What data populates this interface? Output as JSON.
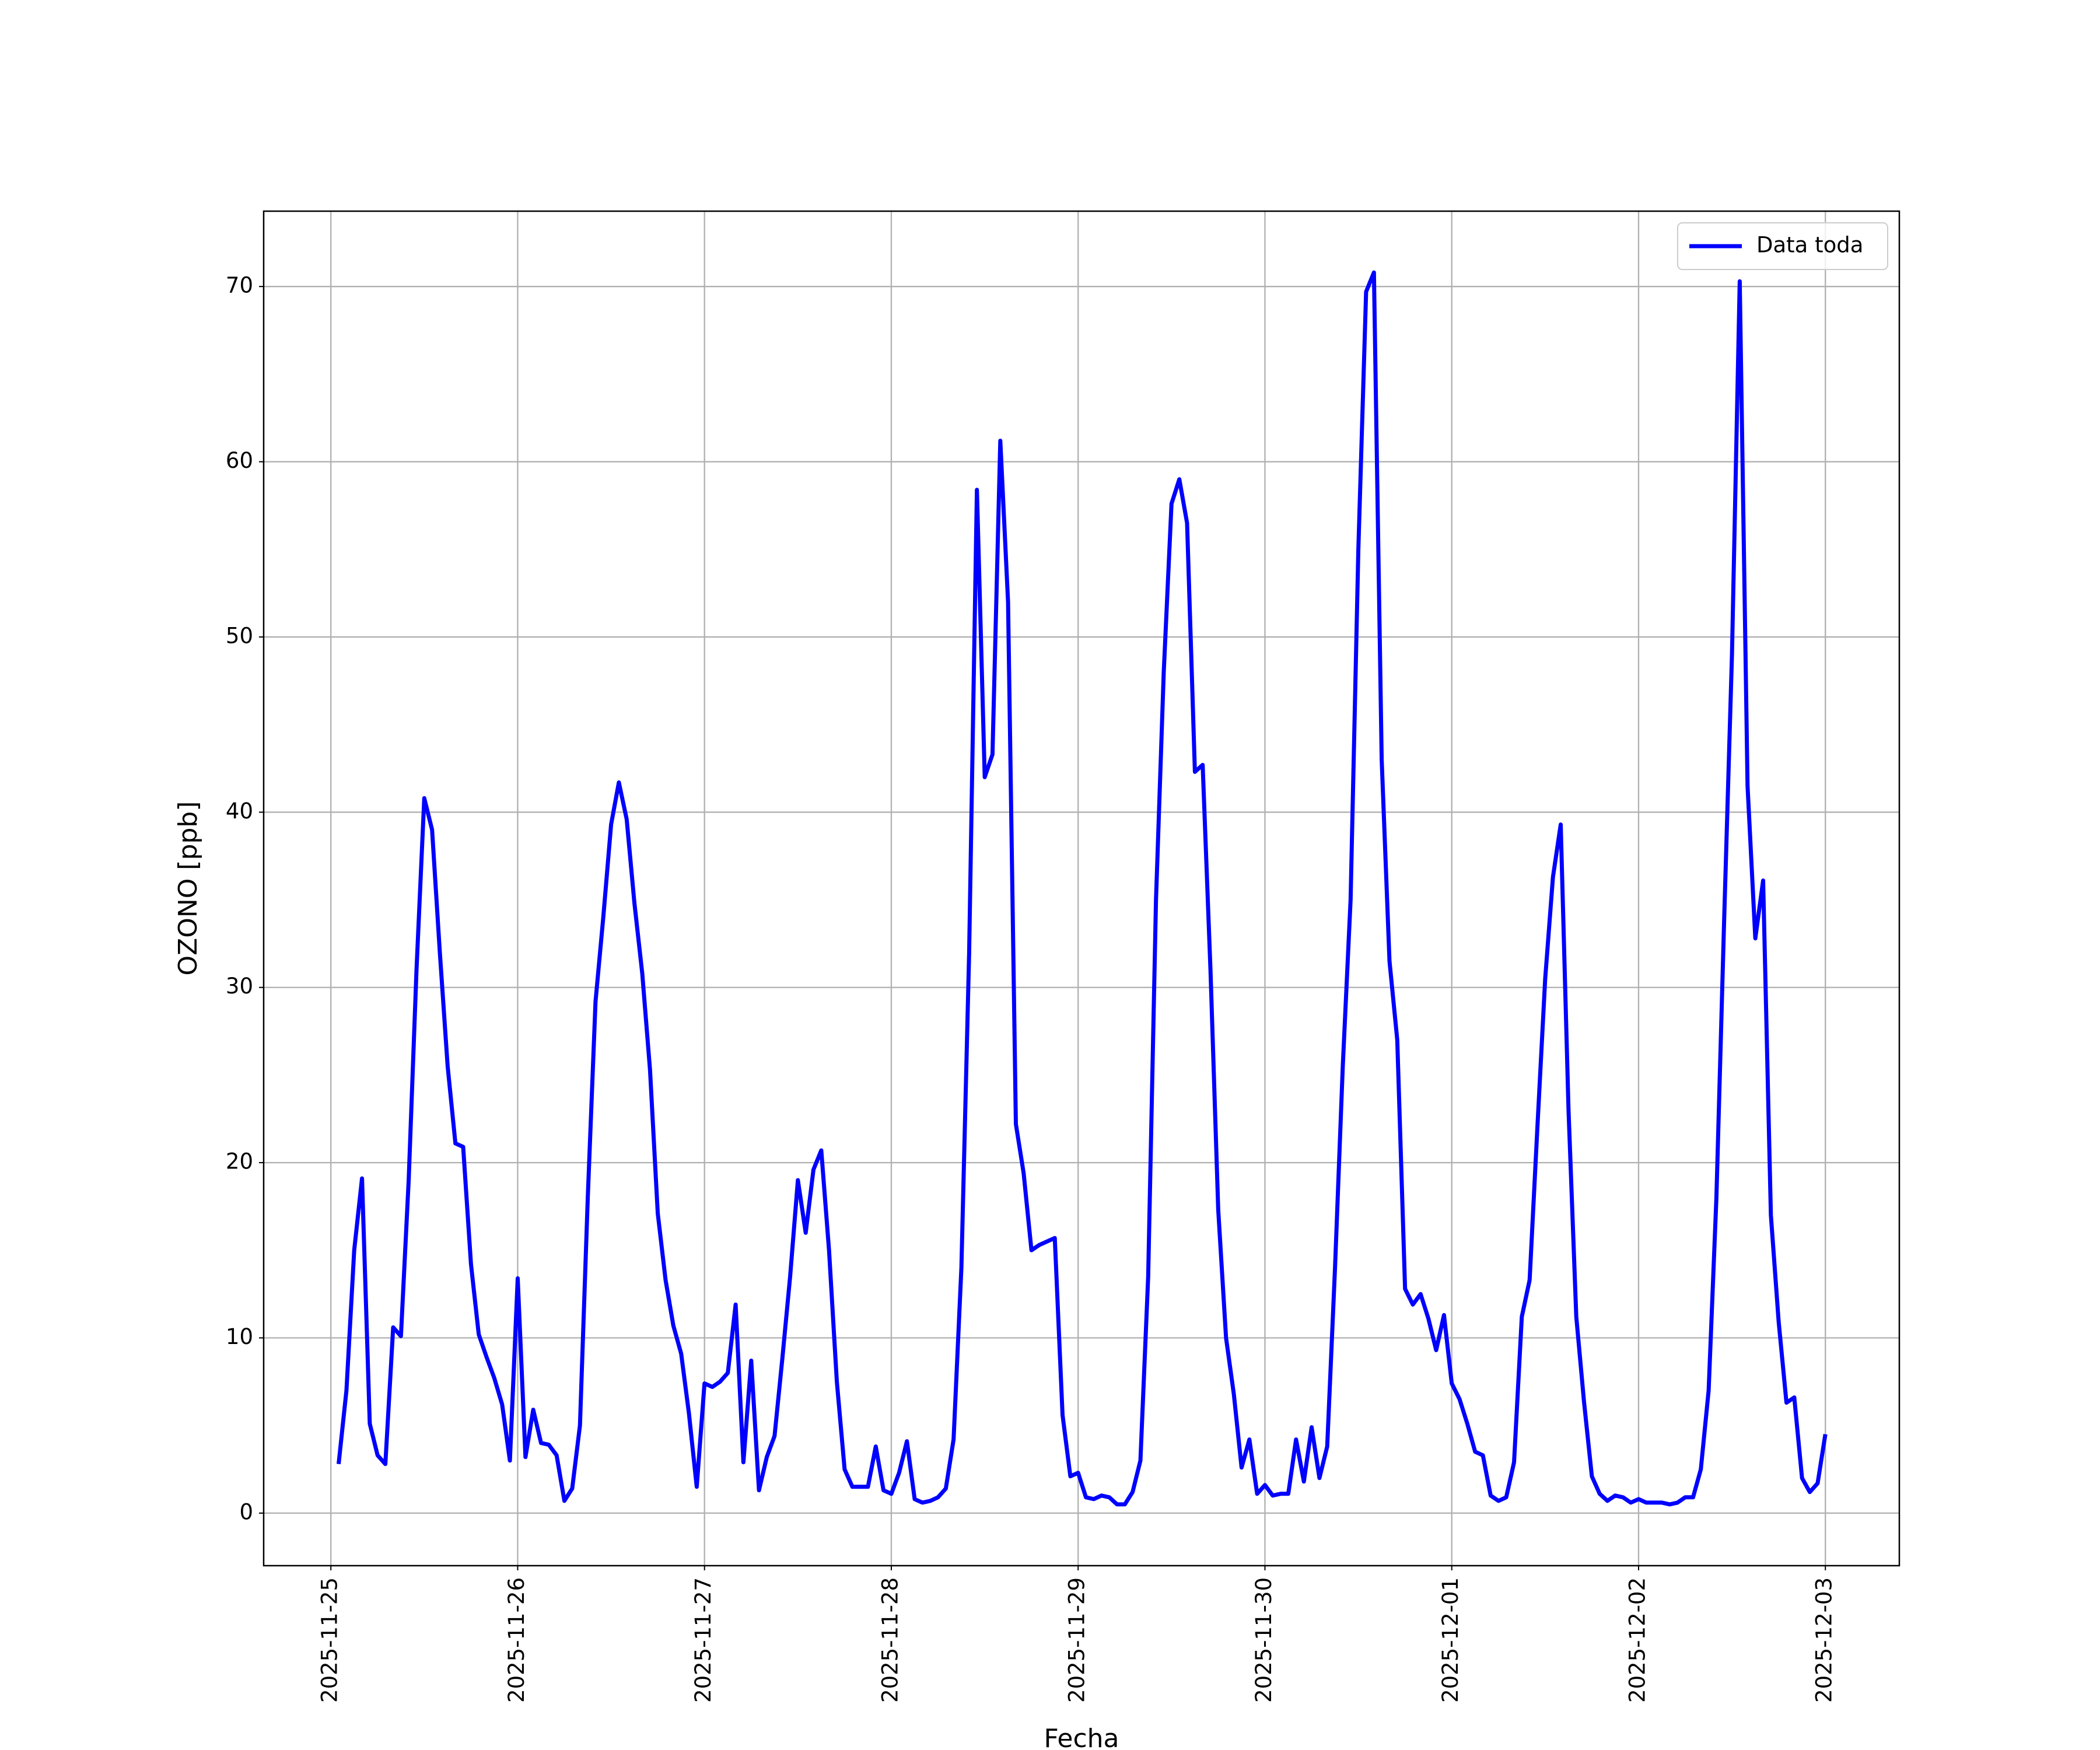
{
  "chart_data": {
    "type": "line",
    "x_label": "Fecha",
    "y_label": "OZONO [ppb]",
    "xlim": [
      "2025-11-24 15:22",
      "2025-12-03 09:30"
    ],
    "xticks": [
      "2025-11-25",
      "2025-11-26",
      "2025-11-27",
      "2025-11-28",
      "2025-11-29",
      "2025-11-30",
      "2025-12-01",
      "2025-12-02",
      "2025-12-03"
    ],
    "ylim": [
      -3.0,
      74.3
    ],
    "yticks": [
      0,
      10,
      20,
      30,
      40,
      50,
      60,
      70
    ],
    "grid": true,
    "legend": "upper right",
    "x": [
      "2025-11-25 01:00",
      "2025-11-25 02:00",
      "2025-11-25 03:00",
      "2025-11-25 04:00",
      "2025-11-25 05:00",
      "2025-11-25 06:00",
      "2025-11-25 07:00",
      "2025-11-25 08:00",
      "2025-11-25 09:00",
      "2025-11-25 10:00",
      "2025-11-25 11:00",
      "2025-11-25 12:00",
      "2025-11-25 13:00",
      "2025-11-25 14:00",
      "2025-11-25 15:00",
      "2025-11-25 16:00",
      "2025-11-25 17:00",
      "2025-11-25 18:00",
      "2025-11-25 19:00",
      "2025-11-25 20:00",
      "2025-11-25 21:00",
      "2025-11-25 22:00",
      "2025-11-25 23:00",
      "2025-11-26 00:00",
      "2025-11-26 01:00",
      "2025-11-26 02:00",
      "2025-11-26 03:00",
      "2025-11-26 04:00",
      "2025-11-26 05:00",
      "2025-11-26 06:00",
      "2025-11-26 07:00",
      "2025-11-26 08:00",
      "2025-11-26 09:00",
      "2025-11-26 10:00",
      "2025-11-26 11:00",
      "2025-11-26 12:00",
      "2025-11-26 13:00",
      "2025-11-26 14:00",
      "2025-11-26 15:00",
      "2025-11-26 16:00",
      "2025-11-26 17:00",
      "2025-11-26 18:00",
      "2025-11-26 19:00",
      "2025-11-26 20:00",
      "2025-11-26 21:00",
      "2025-11-26 22:00",
      "2025-11-26 23:00",
      "2025-11-27 00:00",
      "2025-11-27 01:00",
      "2025-11-27 02:00",
      "2025-11-27 03:00",
      "2025-11-27 04:00",
      "2025-11-27 05:00",
      "2025-11-27 06:00",
      "2025-11-27 07:00",
      "2025-11-27 08:00",
      "2025-11-27 09:00",
      "2025-11-27 10:00",
      "2025-11-27 11:00",
      "2025-11-27 12:00",
      "2025-11-27 13:00",
      "2025-11-27 14:00",
      "2025-11-27 15:00",
      "2025-11-27 16:00",
      "2025-11-27 17:00",
      "2025-11-27 18:00",
      "2025-11-27 19:00",
      "2025-11-27 20:00",
      "2025-11-27 21:00",
      "2025-11-27 22:00",
      "2025-11-27 23:00",
      "2025-11-28 00:00",
      "2025-11-28 01:00",
      "2025-11-28 02:00",
      "2025-11-28 03:00",
      "2025-11-28 04:00",
      "2025-11-28 05:00",
      "2025-11-28 06:00",
      "2025-11-28 07:00",
      "2025-11-28 08:00",
      "2025-11-28 09:00",
      "2025-11-28 10:00",
      "2025-11-28 11:00",
      "2025-11-28 12:00",
      "2025-11-28 13:00",
      "2025-11-28 14:00",
      "2025-11-28 15:00",
      "2025-11-28 16:00",
      "2025-11-28 17:00",
      "2025-11-28 18:00",
      "2025-11-28 19:00",
      "2025-11-28 20:00",
      "2025-11-28 21:00",
      "2025-11-28 22:00",
      "2025-11-28 23:00",
      "2025-11-29 00:00",
      "2025-11-29 01:00",
      "2025-11-29 02:00",
      "2025-11-29 03:00",
      "2025-11-29 04:00",
      "2025-11-29 05:00",
      "2025-11-29 06:00",
      "2025-11-29 07:00",
      "2025-11-29 08:00",
      "2025-11-29 09:00",
      "2025-11-29 10:00",
      "2025-11-29 11:00",
      "2025-11-29 12:00",
      "2025-11-29 13:00",
      "2025-11-29 14:00",
      "2025-11-29 15:00",
      "2025-11-29 16:00",
      "2025-11-29 17:00",
      "2025-11-29 18:00",
      "2025-11-29 19:00",
      "2025-11-29 20:00",
      "2025-11-29 21:00",
      "2025-11-29 22:00",
      "2025-11-29 23:00",
      "2025-11-30 00:00",
      "2025-11-30 01:00",
      "2025-11-30 02:00",
      "2025-11-30 03:00",
      "2025-11-30 04:00",
      "2025-11-30 05:00",
      "2025-11-30 06:00",
      "2025-11-30 07:00",
      "2025-11-30 08:00",
      "2025-11-30 09:00",
      "2025-11-30 10:00",
      "2025-11-30 11:00",
      "2025-11-30 12:00",
      "2025-11-30 13:00",
      "2025-11-30 14:00",
      "2025-11-30 15:00",
      "2025-11-30 16:00",
      "2025-11-30 17:00",
      "2025-11-30 18:00",
      "2025-11-30 19:00",
      "2025-11-30 20:00",
      "2025-11-30 21:00",
      "2025-11-30 22:00",
      "2025-11-30 23:00",
      "2025-12-01 00:00",
      "2025-12-01 01:00",
      "2025-12-01 02:00",
      "2025-12-01 03:00",
      "2025-12-01 04:00",
      "2025-12-01 05:00",
      "2025-12-01 06:00",
      "2025-12-01 07:00",
      "2025-12-01 08:00",
      "2025-12-01 09:00",
      "2025-12-01 10:00",
      "2025-12-01 11:00",
      "2025-12-01 12:00",
      "2025-12-01 13:00",
      "2025-12-01 14:00",
      "2025-12-01 15:00",
      "2025-12-01 16:00",
      "2025-12-01 17:00",
      "2025-12-01 18:00",
      "2025-12-01 19:00",
      "2025-12-01 20:00",
      "2025-12-01 21:00",
      "2025-12-01 22:00",
      "2025-12-01 23:00",
      "2025-12-02 00:00",
      "2025-12-02 01:00",
      "2025-12-02 02:00",
      "2025-12-02 03:00",
      "2025-12-02 04:00",
      "2025-12-02 05:00",
      "2025-12-02 06:00",
      "2025-12-02 07:00",
      "2025-12-02 08:00",
      "2025-12-02 09:00",
      "2025-12-02 10:00",
      "2025-12-02 11:00",
      "2025-12-02 12:00",
      "2025-12-02 13:00",
      "2025-12-02 14:00",
      "2025-12-02 15:00",
      "2025-12-02 16:00",
      "2025-12-02 17:00",
      "2025-12-02 18:00",
      "2025-12-02 19:00",
      "2025-12-02 20:00",
      "2025-12-02 21:00",
      "2025-12-02 22:00",
      "2025-12-02 23:00",
      "2025-12-03 00:00"
    ],
    "series": [
      {
        "name": "Data toda",
        "color": "#0000ff",
        "values": [
          2.8,
          7,
          15,
          19.1,
          5.1,
          3.3,
          2.8,
          10.6,
          10.1,
          19,
          31,
          40.8,
          39,
          32,
          25.5,
          21.1,
          20.9,
          14.2,
          10.2,
          8.9,
          7.7,
          6.2,
          3.0,
          13.4,
          3.2,
          5.9,
          4.0,
          3.9,
          3.3,
          0.7,
          1.4,
          5.0,
          18,
          29.2,
          34,
          39.3,
          41.7,
          39.6,
          34.8,
          30.8,
          25.3,
          17.1,
          13.3,
          10.7,
          9.1,
          5.7,
          1.5,
          7.4,
          7.2,
          7.5,
          8.0,
          11.9,
          2.9,
          8.7,
          1.3,
          3.2,
          4.4,
          8.8,
          13.5,
          19.0,
          16.0,
          19.6,
          20.7,
          15,
          7.5,
          2.5,
          1.5,
          1.5,
          1.5,
          3.8,
          1.3,
          1.1,
          2.3,
          4.1,
          0.8,
          0.6,
          0.7,
          0.9,
          1.4,
          4.2,
          14,
          32,
          58.4,
          42,
          43.3,
          61.2,
          52,
          22.2,
          19.4,
          15,
          15.3,
          15.5,
          15.7,
          5.6,
          2.1,
          2.3,
          0.9,
          0.8,
          1.0,
          0.9,
          0.5,
          0.5,
          1.2,
          3.0,
          13.5,
          35,
          48,
          57.6,
          59,
          56.5,
          42.3,
          42.7,
          31,
          17.3,
          10,
          6.8,
          2.6,
          4.2,
          1.1,
          1.6,
          1.0,
          1.1,
          1.1,
          4.2,
          1.8,
          4.9,
          2.0,
          3.8,
          14,
          25.5,
          35,
          55,
          69.7,
          70.8,
          43,
          31.5,
          27,
          12.8,
          11.9,
          12.5,
          11.1,
          9.3,
          11.3,
          7.4,
          6.5,
          5.1,
          3.5,
          3.3,
          1.0,
          0.7,
          0.9,
          2.9,
          11.2,
          13.3,
          22,
          30.5,
          36.3,
          39.3,
          23,
          11.2,
          6.3,
          2.1,
          1.1,
          0.7,
          1.0,
          0.9,
          0.6,
          0.8,
          0.6,
          0.6,
          0.6,
          0.5,
          0.6,
          0.9,
          0.9,
          2.5,
          7,
          18,
          34,
          49,
          70.3,
          41.5,
          32.8,
          36.1,
          17,
          10.9,
          6.3,
          6.6,
          2.0,
          1.2,
          1.7,
          4.5
        ]
      }
    ]
  }
}
